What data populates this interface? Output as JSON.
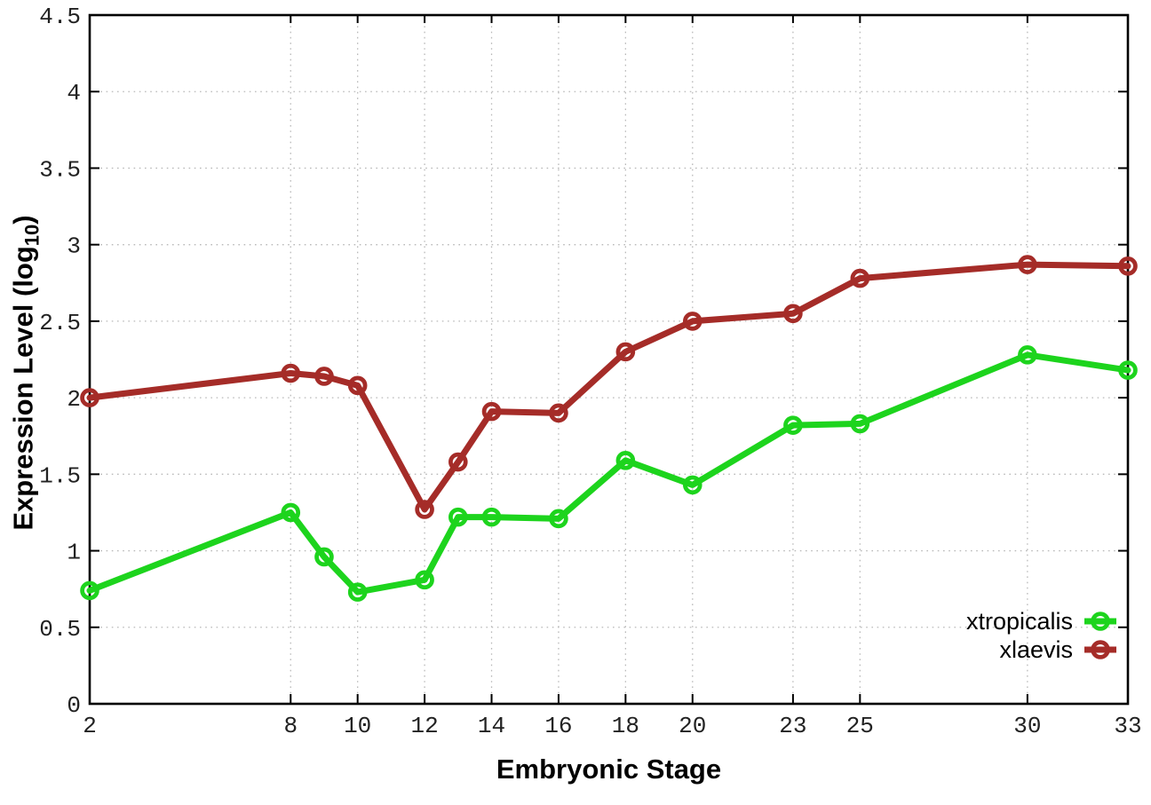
{
  "chart_data": {
    "type": "line",
    "title": "",
    "xlabel": "Embryonic Stage",
    "ylabel": "Expression Level (log10)",
    "ylabel_pre": "Expression Level (log",
    "ylabel_sub": "10",
    "ylabel_post": ")",
    "xlim": [
      2,
      33
    ],
    "ylim": [
      0,
      4.5
    ],
    "grid": true,
    "legend_position": "inside-bottom-right",
    "x": [
      2,
      8,
      9,
      10,
      12,
      13,
      14,
      16,
      18,
      20,
      23,
      25,
      30,
      33
    ],
    "xticks": [
      2,
      8,
      10,
      12,
      14,
      16,
      18,
      20,
      23,
      25,
      30,
      33
    ],
    "yticks": [
      0,
      0.5,
      1,
      1.5,
      2,
      2.5,
      3,
      3.5,
      4,
      4.5
    ],
    "series": [
      {
        "name": "xtropicalis",
        "color": "#1dd41d",
        "marker": "open-circle",
        "values": [
          0.74,
          1.25,
          0.96,
          0.73,
          0.81,
          1.22,
          1.22,
          1.21,
          1.59,
          1.43,
          1.82,
          1.83,
          2.28,
          2.18
        ]
      },
      {
        "name": "xlaevis",
        "color": "#a52c28",
        "marker": "open-circle",
        "values": [
          2.0,
          2.16,
          2.14,
          2.08,
          1.27,
          1.58,
          1.91,
          1.9,
          2.3,
          2.5,
          2.55,
          2.78,
          2.87,
          2.86
        ]
      }
    ],
    "colors": {
      "axis": "#000000",
      "grid": "#b9b9b9",
      "tick_label": "#222222",
      "legend_text": "#000000",
      "background": "#ffffff"
    }
  }
}
